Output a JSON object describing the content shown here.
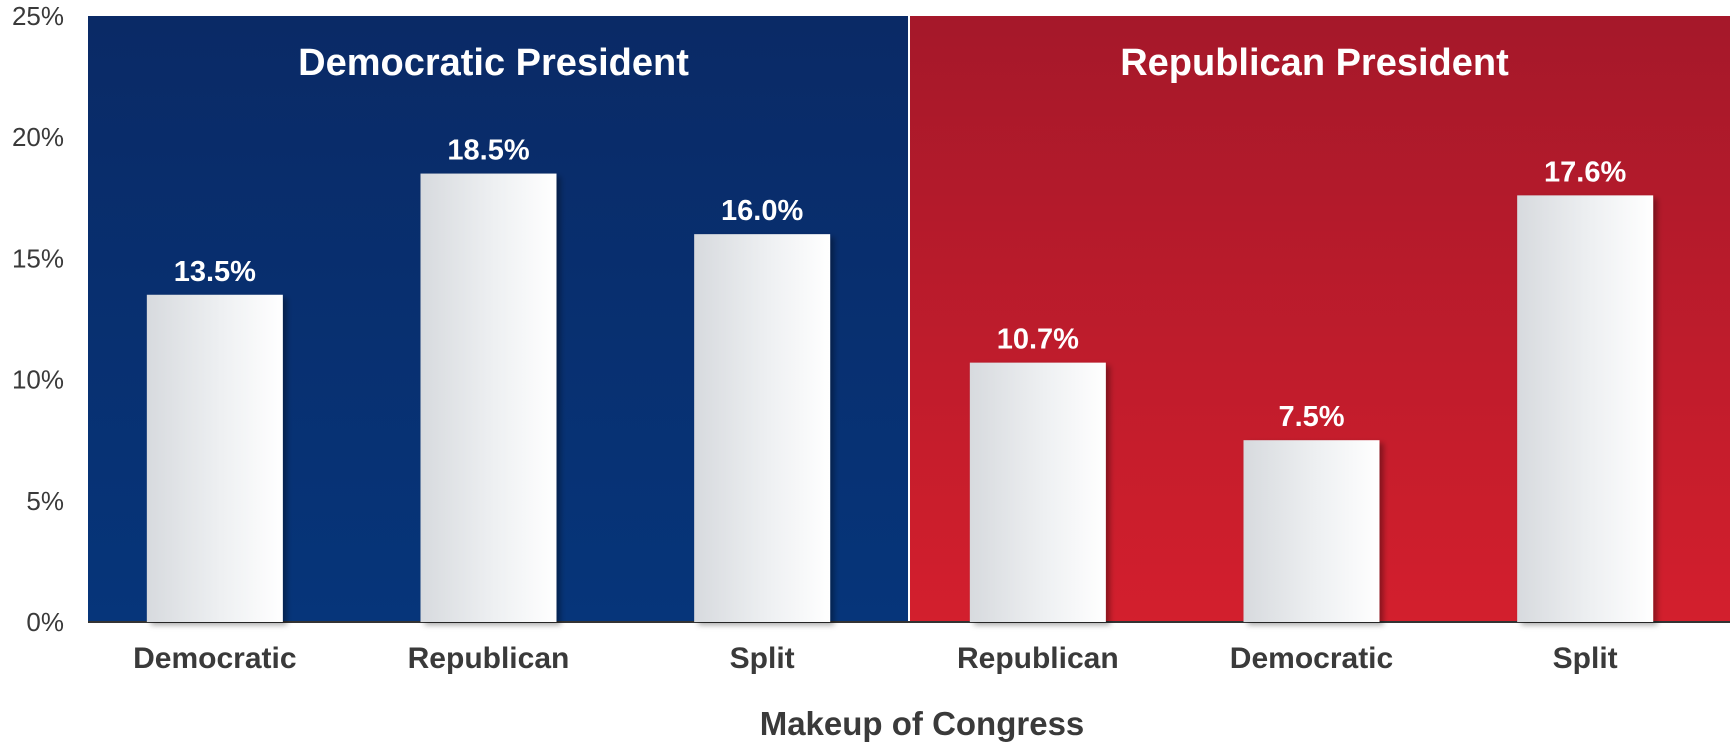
{
  "chart_data": {
    "type": "bar",
    "xlabel": "Makeup of Congress",
    "ylabel": "",
    "ylim": [
      0,
      25
    ],
    "yticks": [
      "0%",
      "5%",
      "10%",
      "15%",
      "20%",
      "25%"
    ],
    "grid": false,
    "panels": [
      {
        "title": "Democratic President",
        "color": "#0a2f6e",
        "color_light": "#06367a",
        "categories": [
          "Democratic",
          "Republican",
          "Split"
        ],
        "values": [
          13.5,
          18.5,
          16.0
        ],
        "value_labels": [
          "13.5%",
          "18.5%",
          "16.0%"
        ]
      },
      {
        "title": "Republican President",
        "color": "#a51628",
        "color_light": "#d21e2c",
        "categories": [
          "Republican",
          "Democratic",
          "Split"
        ],
        "values": [
          10.7,
          7.5,
          17.6
        ],
        "value_labels": [
          "10.7%",
          "7.5%",
          "17.6%"
        ]
      }
    ]
  }
}
